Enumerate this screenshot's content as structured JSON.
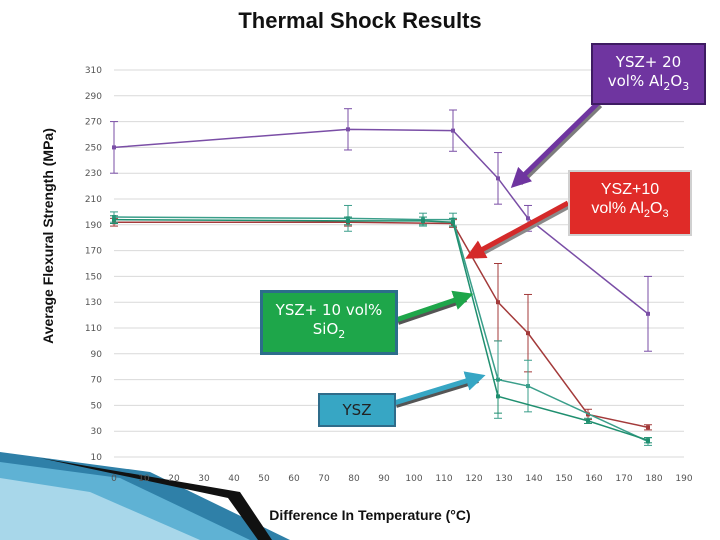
{
  "chart_data": {
    "type": "line",
    "title": "Thermal Shock Results",
    "xlabel": "Difference In Temperature (°C)",
    "ylabel": "Average Flexural Strength (MPa)",
    "xlim": [
      0,
      190
    ],
    "ylim": [
      10,
      310
    ],
    "xticks": [
      0,
      10,
      20,
      30,
      40,
      50,
      60,
      70,
      80,
      90,
      100,
      110,
      120,
      130,
      140,
      150,
      160,
      170,
      180,
      190
    ],
    "yticks": [
      10,
      30,
      50,
      70,
      90,
      110,
      130,
      150,
      170,
      190,
      210,
      230,
      250,
      270,
      290,
      310
    ],
    "series": [
      {
        "name": "YSZ+ 20 vol% Al2O3",
        "color": "#7a4ea6",
        "x": [
          0,
          78,
          113,
          128,
          138,
          178
        ],
        "y": [
          250,
          264,
          263,
          226,
          195,
          121
        ],
        "err": [
          20,
          16,
          16,
          20,
          10,
          29
        ]
      },
      {
        "name": "YSZ+10 vol% Al2O3",
        "color": "#a33a3a",
        "x": [
          0,
          78,
          113,
          128,
          138,
          158,
          178
        ],
        "y": [
          192,
          192,
          191,
          130,
          106,
          43,
          33
        ],
        "err": [
          3,
          3,
          3,
          30,
          30,
          4,
          2
        ]
      },
      {
        "name": "YSZ+ 10 vol% SiO2",
        "color": "#3a9e8a",
        "x": [
          0,
          78,
          103,
          113,
          128,
          138,
          178
        ],
        "y": [
          196,
          195,
          194,
          194,
          70,
          65,
          22
        ],
        "err": [
          4,
          10,
          5,
          5,
          30,
          20,
          3
        ]
      },
      {
        "name": "YSZ",
        "color": "#1f8f6f",
        "x": [
          0,
          78,
          103,
          113,
          128,
          158,
          178
        ],
        "y": [
          194,
          193,
          193,
          192,
          57,
          38,
          23
        ],
        "err": [
          3,
          3,
          3,
          3,
          13,
          2,
          2
        ]
      }
    ]
  },
  "callouts": {
    "c1": {
      "line1": "YSZ+ 20",
      "line2a": "vol% Al",
      "sub1": "2",
      "mid": "O",
      "sub2": "3"
    },
    "c2": {
      "line1": "YSZ+10",
      "line2a": "vol% Al",
      "sub1": "2",
      "mid": "O",
      "sub2": "3"
    },
    "c3": {
      "line1": "YSZ+ 10 vol%",
      "line2a": "SiO",
      "sub1": "2"
    },
    "c4": {
      "line1": "YSZ"
    }
  }
}
